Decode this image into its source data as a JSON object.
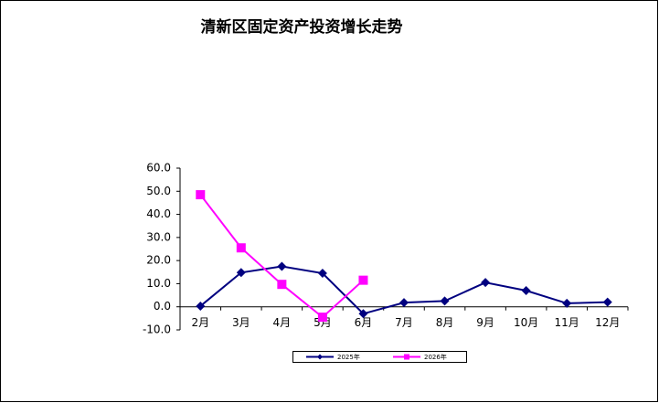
{
  "chart_data": {
    "type": "line",
    "title": "清新区固定资产投资增长走势",
    "categories": [
      "2月",
      "3月",
      "4月",
      "5月",
      "6月",
      "7月",
      "8月",
      "9月",
      "10月",
      "11月",
      "12月"
    ],
    "series": [
      {
        "name": "2025年",
        "color": "#000080",
        "marker": "diamond",
        "values": [
          0.3,
          14.8,
          17.5,
          14.5,
          -3,
          1.8,
          2.5,
          10.5,
          7,
          1.5,
          2
        ]
      },
      {
        "name": "2026年",
        "color": "#ff00ff",
        "marker": "square",
        "values": [
          48.5,
          25.5,
          9.7,
          -4.5,
          11.5,
          null,
          null,
          null,
          null,
          null,
          null
        ]
      }
    ],
    "ylim": [
      -10,
      60
    ],
    "yticks": [
      {
        "value": -10,
        "label": "-10.0"
      },
      {
        "value": 0,
        "label": "0.0"
      },
      {
        "value": 10,
        "label": "10.0"
      },
      {
        "value": 20,
        "label": "20.0"
      },
      {
        "value": 30,
        "label": "30.0"
      },
      {
        "value": 40,
        "label": "40.0"
      },
      {
        "value": 50,
        "label": "50.0"
      },
      {
        "value": 60,
        "label": "60.0"
      }
    ],
    "grid": false,
    "legend": "bottom"
  }
}
